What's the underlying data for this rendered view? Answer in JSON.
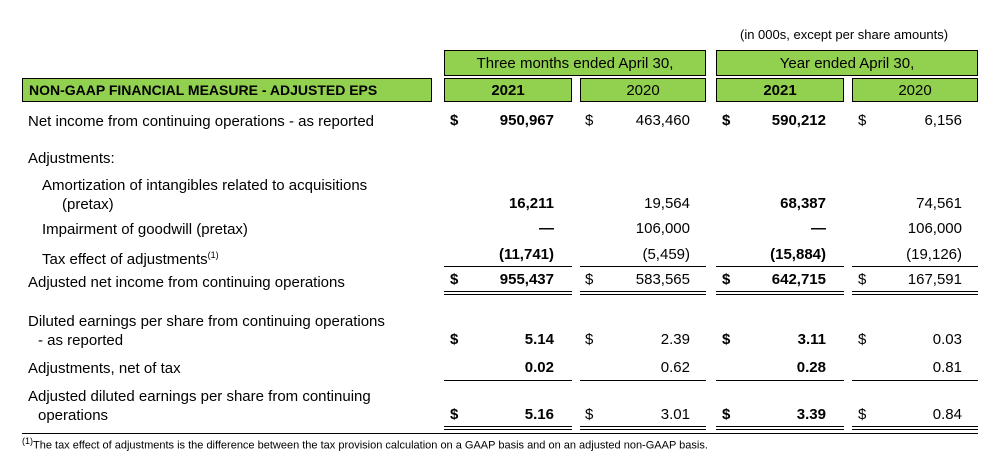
{
  "note": "(in 000s, except per share amounts)",
  "title": "NON-GAAP FINANCIAL MEASURE - ADJUSTED EPS",
  "groups": [
    "Three months ended April 30,",
    "Year ended April 30,"
  ],
  "years": [
    "2021",
    "2020",
    "2021",
    "2020"
  ],
  "rows": {
    "net_income": {
      "label": "Net income from continuing operations - as reported",
      "values": [
        "950,967",
        "463,460",
        "590,212",
        "6,156"
      ]
    },
    "adjustments": {
      "label": "Adjustments:"
    },
    "amort": {
      "label1": "Amortization of intangibles related to acquisitions",
      "label2": "(pretax)",
      "values": [
        "16,211",
        "19,564",
        "68,387",
        "74,561"
      ]
    },
    "impair": {
      "label": "Impairment of goodwill (pretax)",
      "values": [
        "—",
        "106,000",
        "—",
        "106,000"
      ]
    },
    "tax": {
      "label": "Tax effect of adjustments",
      "sup": "(1)",
      "values": [
        "(11,741)",
        "(5,459)",
        "(15,884)",
        "(19,126)"
      ]
    },
    "adj_net": {
      "label": "Adjusted net income from continuing operations",
      "values": [
        "955,437",
        "583,565",
        "642,715",
        "167,591"
      ]
    },
    "diluted": {
      "label1": "Diluted earnings per share from continuing operations",
      "label2": "- as reported",
      "values": [
        "5.14",
        "2.39",
        "3.11",
        "0.03"
      ]
    },
    "adj_tax": {
      "label": "Adjustments, net of tax",
      "values": [
        "0.02",
        "0.62",
        "0.28",
        "0.81"
      ]
    },
    "adj_diluted": {
      "label1": "Adjusted diluted  earnings per share from continuing",
      "label2": "operations",
      "values": [
        "5.16",
        "3.01",
        "3.39",
        "0.84"
      ]
    }
  },
  "currency": "$",
  "footnote_marker": "(1)",
  "footnote": "The tax effect of adjustments is the difference between the tax provision calculation on a GAAP basis and on an adjusted non-GAAP basis."
}
